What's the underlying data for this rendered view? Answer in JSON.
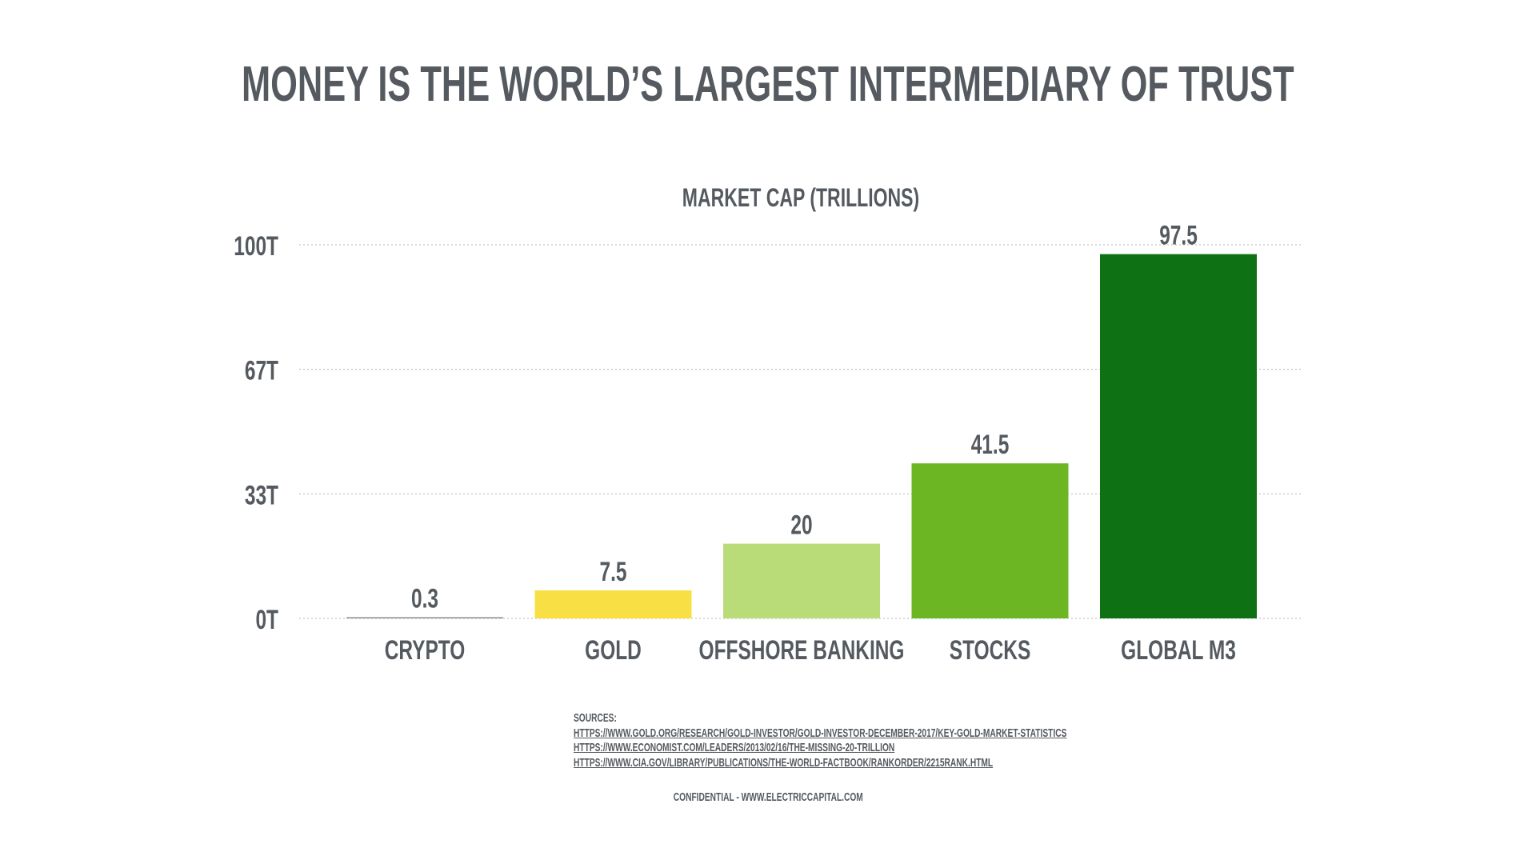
{
  "title": "MONEY IS THE WORLD’S LARGEST INTERMEDIARY OF TRUST",
  "chart_data": {
    "type": "bar",
    "title": "MARKET CAP (TRILLIONS)",
    "categories": [
      "CRYPTO",
      "GOLD",
      "OFFSHORE BANKING",
      "STOCKS",
      "GLOBAL M3"
    ],
    "values": [
      0.3,
      7.5,
      20,
      41.5,
      97.5
    ],
    "value_labels": [
      "0.3",
      "7.5",
      "20",
      "41.5",
      "97.5"
    ],
    "colors": [
      "#8a8d91",
      "#f8e044",
      "#badc78",
      "#6cb623",
      "#0e7113"
    ],
    "ylim": [
      0,
      100
    ],
    "yticks": [
      0,
      33.33,
      66.67,
      100
    ],
    "ytick_labels": [
      "0T",
      "33T",
      "67T",
      "100T"
    ],
    "grid": true,
    "xlabel": "",
    "ylabel": ""
  },
  "sources": {
    "label": "SOURCES:",
    "links": [
      "HTTPS://WWW.GOLD.ORG/RESEARCH/GOLD-INVESTOR/GOLD-INVESTOR-DECEMBER-2017/KEY-GOLD-MARKET-STATISTICS",
      "HTTPS://WWW.ECONOMIST.COM/LEADERS/2013/02/16/THE-MISSING-20-TRILLION",
      "HTTPS://WWW.CIA.GOV/LIBRARY/PUBLICATIONS/THE-WORLD-FACTBOOK/RANKORDER/2215RANK.HTML"
    ]
  },
  "footer": "CONFIDENTIAL - WWW.ELECTRICCAPITAL.COM",
  "text_color": "#555a60"
}
